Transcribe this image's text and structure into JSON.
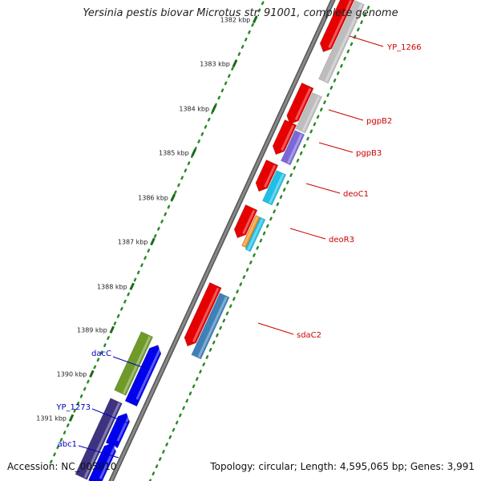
{
  "title": "Yersinia pestis biovar Microtus str. 91001, complete genome",
  "accession": "Accession: NC_005810",
  "summary": "Topology: circular; Length: 4,595,065 bp; Genes: 3,991",
  "colors": {
    "backbone": "#888888",
    "scale_dots": "#2a8a2a",
    "forward_label": "#cc0000",
    "reverse_label": "#0000bb"
  },
  "ruler": {
    "ticks": [
      "1382 kbp",
      "1383 kbp",
      "1384 kbp",
      "1385 kbp",
      "1386 kbp",
      "1387 kbp",
      "1388 kbp",
      "1389 kbp",
      "1390 kbp",
      "1391 kbp"
    ]
  },
  "genes": [
    {
      "label": "YP_1266",
      "strand": "forward",
      "color": "#e60000",
      "icon": "gene-arrow"
    },
    {
      "label": "pgpB2",
      "strand": "forward",
      "color": "#e60000",
      "icon": "gene-arrow"
    },
    {
      "label": "pgpB3",
      "strand": "forward",
      "color": "#e60000",
      "icon": "gene-arrow"
    },
    {
      "label": "deoC1",
      "strand": "forward",
      "color": "#e60000",
      "icon": "gene-arrow"
    },
    {
      "label": "deoR3",
      "strand": "forward",
      "color": "#e60000",
      "icon": "gene-arrow"
    },
    {
      "label": "sdaC2",
      "strand": "forward",
      "color": "#e60000",
      "icon": "gene-arrow"
    },
    {
      "label": "dacC",
      "strand": "reverse",
      "color": "#0000ee",
      "icon": "gene-arrow"
    },
    {
      "label": "YP_1273",
      "strand": "reverse",
      "color": "#0000ee",
      "icon": "gene-arrow"
    },
    {
      "label": "abc1",
      "strand": "reverse",
      "color": "#0000ee",
      "icon": "gene-arrow"
    }
  ],
  "category_colors": {
    "grey": "#bdbdbd",
    "purple": "#7b68d8",
    "cyan": "#1fbfe6",
    "orange": "#f08c1a",
    "steelblue": "#3f80b8",
    "olive": "#6f9a2a",
    "navy": "#3d3380"
  }
}
